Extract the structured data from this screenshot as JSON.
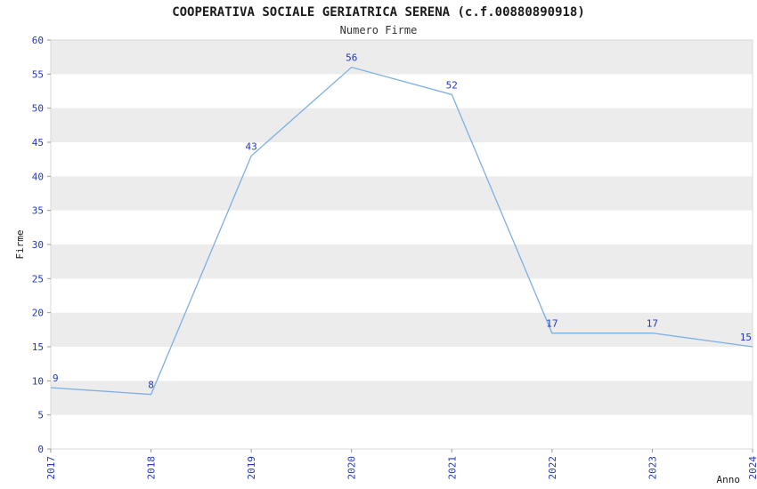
{
  "title": "COOPERATIVA SOCIALE GERIATRICA SERENA (c.f.00880890918)",
  "subtitle": "Numero Firme",
  "chart_data": {
    "type": "line",
    "categories": [
      "2017",
      "2018",
      "2019",
      "2020",
      "2021",
      "2022",
      "2023",
      "2024"
    ],
    "series": [
      {
        "name": "Firme",
        "values": [
          9,
          8,
          43,
          56,
          52,
          17,
          17,
          15
        ]
      }
    ],
    "title": "COOPERATIVA SOCIALE GERIATRICA SERENA (c.f.00880890918)",
    "subtitle": "Numero Firme",
    "xlabel": "Anno",
    "ylabel": "Firme",
    "ylim": [
      0,
      60
    ],
    "ytick_step": 5,
    "grid": "striped-horizontal-bands",
    "legend": "none",
    "colors": {
      "line": "#7cb0e2",
      "tick_label": "#2038c0",
      "point_label": "#2038c0",
      "band_gray": "#ececec",
      "band_white": "#ffffff",
      "plot_border": "#d8d8d8",
      "axis_text": "#1a1a1a"
    }
  }
}
